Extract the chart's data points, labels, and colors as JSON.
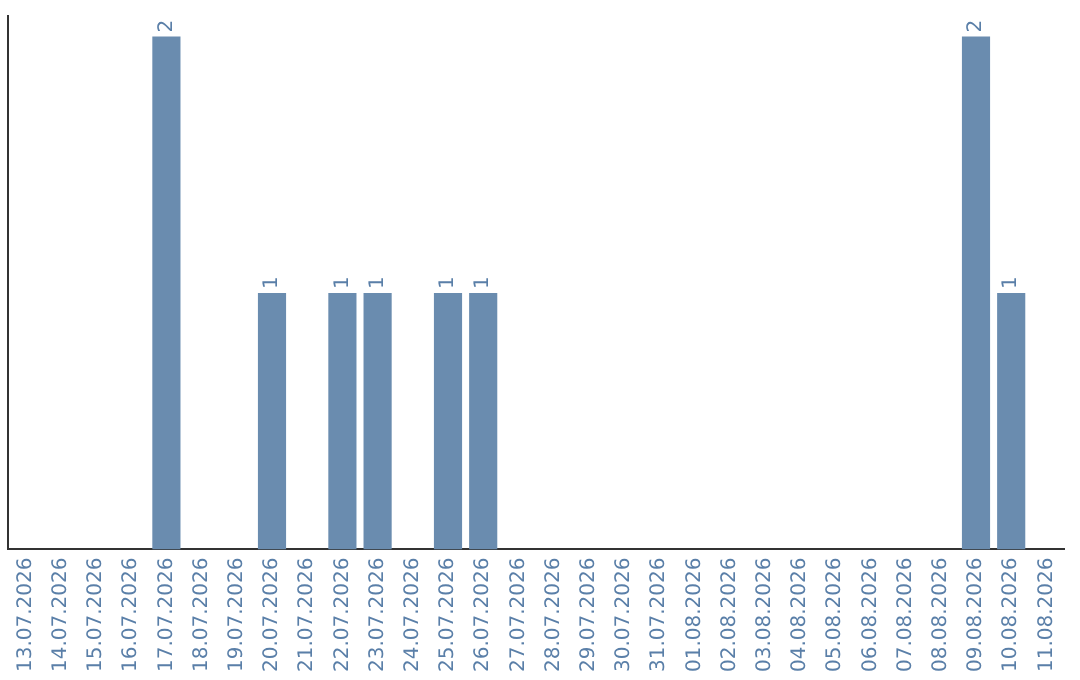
{
  "chart_data": {
    "type": "bar",
    "categories": [
      "13.07.2026",
      "14.07.2026",
      "15.07.2026",
      "16.07.2026",
      "17.07.2026",
      "18.07.2026",
      "19.07.2026",
      "20.07.2026",
      "21.07.2026",
      "22.07.2026",
      "23.07.2026",
      "24.07.2026",
      "25.07.2026",
      "26.07.2026",
      "27.07.2026",
      "28.07.2026",
      "29.07.2026",
      "30.07.2026",
      "31.07.2026",
      "01.08.2026",
      "02.08.2026",
      "03.08.2026",
      "04.08.2026",
      "05.08.2026",
      "06.08.2026",
      "07.08.2026",
      "08.08.2026",
      "09.08.2026",
      "10.08.2026",
      "11.08.2026"
    ],
    "values": [
      0,
      0,
      0,
      0,
      2,
      0,
      0,
      1,
      0,
      1,
      1,
      0,
      1,
      1,
      0,
      0,
      0,
      0,
      0,
      0,
      0,
      0,
      0,
      0,
      0,
      0,
      0,
      2,
      1,
      0
    ],
    "value_labels": [
      null,
      null,
      null,
      null,
      "2",
      null,
      null,
      "1",
      null,
      "1",
      "1",
      null,
      "1",
      "1",
      null,
      null,
      null,
      null,
      null,
      null,
      null,
      null,
      null,
      null,
      null,
      null,
      null,
      "2",
      "1",
      null
    ],
    "color": "#6a8caf",
    "ylim": [
      0,
      2.08
    ],
    "tick_labels": "x",
    "grid": false,
    "legend": false
  }
}
